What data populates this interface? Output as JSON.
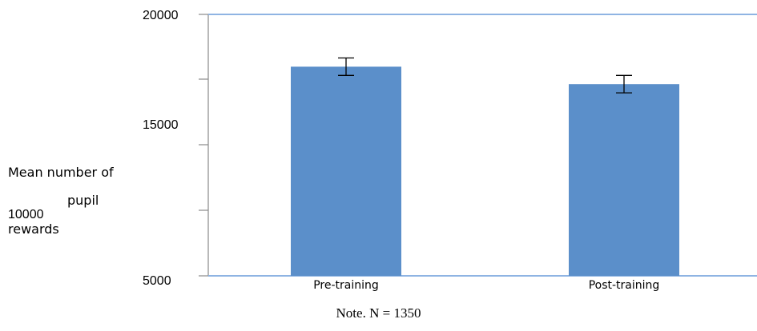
{
  "chart_data": {
    "type": "bar",
    "categories": [
      "Pre-training",
      "Post-training"
    ],
    "values": [
      17000,
      16000
    ],
    "error": [
      500,
      500
    ],
    "ylim": [
      5000,
      20000
    ],
    "ytick_labels": [
      "20000",
      "15000",
      "10000",
      "5000"
    ],
    "ylabel_lines": [
      "Mean number of",
      "pupil",
      "rewards"
    ],
    "grid": false,
    "bar_color": "#5b8fca",
    "axis_color": "#8fb4e3"
  },
  "note": "Note. N = 1350"
}
